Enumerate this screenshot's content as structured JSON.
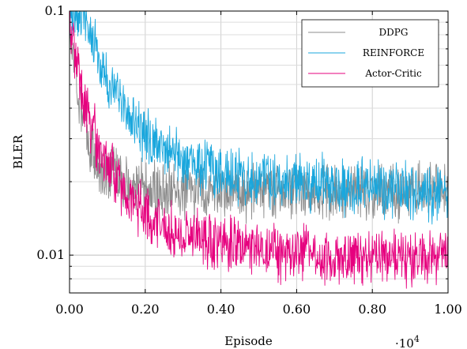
{
  "chart_data": {
    "type": "line",
    "title": "",
    "xlabel": "Episode",
    "ylabel": "BLER",
    "x_multiplier_label": "·10",
    "x_multiplier_exponent": "4",
    "xlim": [
      0,
      1.0
    ],
    "ylim": [
      0.007,
      0.1
    ],
    "y_scale": "log",
    "grid": true,
    "legend_position": "top-right",
    "x_ticks": [
      {
        "value": 0.0,
        "label": "0.00"
      },
      {
        "value": 0.2,
        "label": "0.20"
      },
      {
        "value": 0.4,
        "label": "0.40"
      },
      {
        "value": 0.6,
        "label": "0.60"
      },
      {
        "value": 0.8,
        "label": "0.80"
      },
      {
        "value": 1.0,
        "label": "1.00"
      }
    ],
    "y_ticks": [
      {
        "value": 0.1,
        "label": "0.1"
      },
      {
        "value": 0.01,
        "label": "0.01"
      }
    ],
    "series": [
      {
        "name": "DDPG",
        "color": "#8c8c8c",
        "x": [
          0.0,
          0.02,
          0.04,
          0.06,
          0.08,
          0.1,
          0.12,
          0.14,
          0.16,
          0.18,
          0.2,
          0.25,
          0.3,
          0.35,
          0.4,
          0.45,
          0.5,
          0.55,
          0.6,
          0.65,
          0.7,
          0.75,
          0.8,
          0.85,
          0.9,
          0.95,
          1.0
        ],
        "y": [
          0.09,
          0.05,
          0.035,
          0.027,
          0.022,
          0.021,
          0.022,
          0.02,
          0.019,
          0.019,
          0.0185,
          0.0185,
          0.0183,
          0.0182,
          0.0182,
          0.0183,
          0.0182,
          0.0183,
          0.0182,
          0.0183,
          0.0182,
          0.0182,
          0.0183,
          0.0182,
          0.0182,
          0.0183,
          0.0183
        ]
      },
      {
        "name": "REINFORCE",
        "color": "#1aa7dd",
        "x": [
          0.0,
          0.02,
          0.04,
          0.06,
          0.08,
          0.1,
          0.12,
          0.14,
          0.16,
          0.18,
          0.2,
          0.25,
          0.3,
          0.35,
          0.4,
          0.45,
          0.5,
          0.55,
          0.6,
          0.65,
          0.7,
          0.75,
          0.8,
          0.85,
          0.9,
          0.95,
          1.0
        ],
        "y": [
          0.1,
          0.1,
          0.092,
          0.075,
          0.062,
          0.053,
          0.046,
          0.041,
          0.037,
          0.034,
          0.031,
          0.027,
          0.025,
          0.023,
          0.022,
          0.0215,
          0.021,
          0.0205,
          0.02,
          0.02,
          0.0195,
          0.019,
          0.0188,
          0.0185,
          0.0182,
          0.018,
          0.018
        ]
      },
      {
        "name": "Actor-Critic",
        "color": "#e6007e",
        "x": [
          0.0,
          0.02,
          0.04,
          0.06,
          0.08,
          0.1,
          0.12,
          0.14,
          0.16,
          0.18,
          0.2,
          0.25,
          0.3,
          0.35,
          0.4,
          0.45,
          0.5,
          0.55,
          0.6,
          0.65,
          0.7,
          0.75,
          0.8,
          0.85,
          0.9,
          0.95,
          1.0
        ],
        "y": [
          0.09,
          0.06,
          0.042,
          0.033,
          0.028,
          0.024,
          0.021,
          0.019,
          0.017,
          0.0158,
          0.015,
          0.013,
          0.0122,
          0.0116,
          0.0112,
          0.0108,
          0.0106,
          0.0104,
          0.0102,
          0.0101,
          0.01,
          0.0099,
          0.0099,
          0.0098,
          0.0098,
          0.0097,
          0.0097
        ]
      }
    ]
  }
}
